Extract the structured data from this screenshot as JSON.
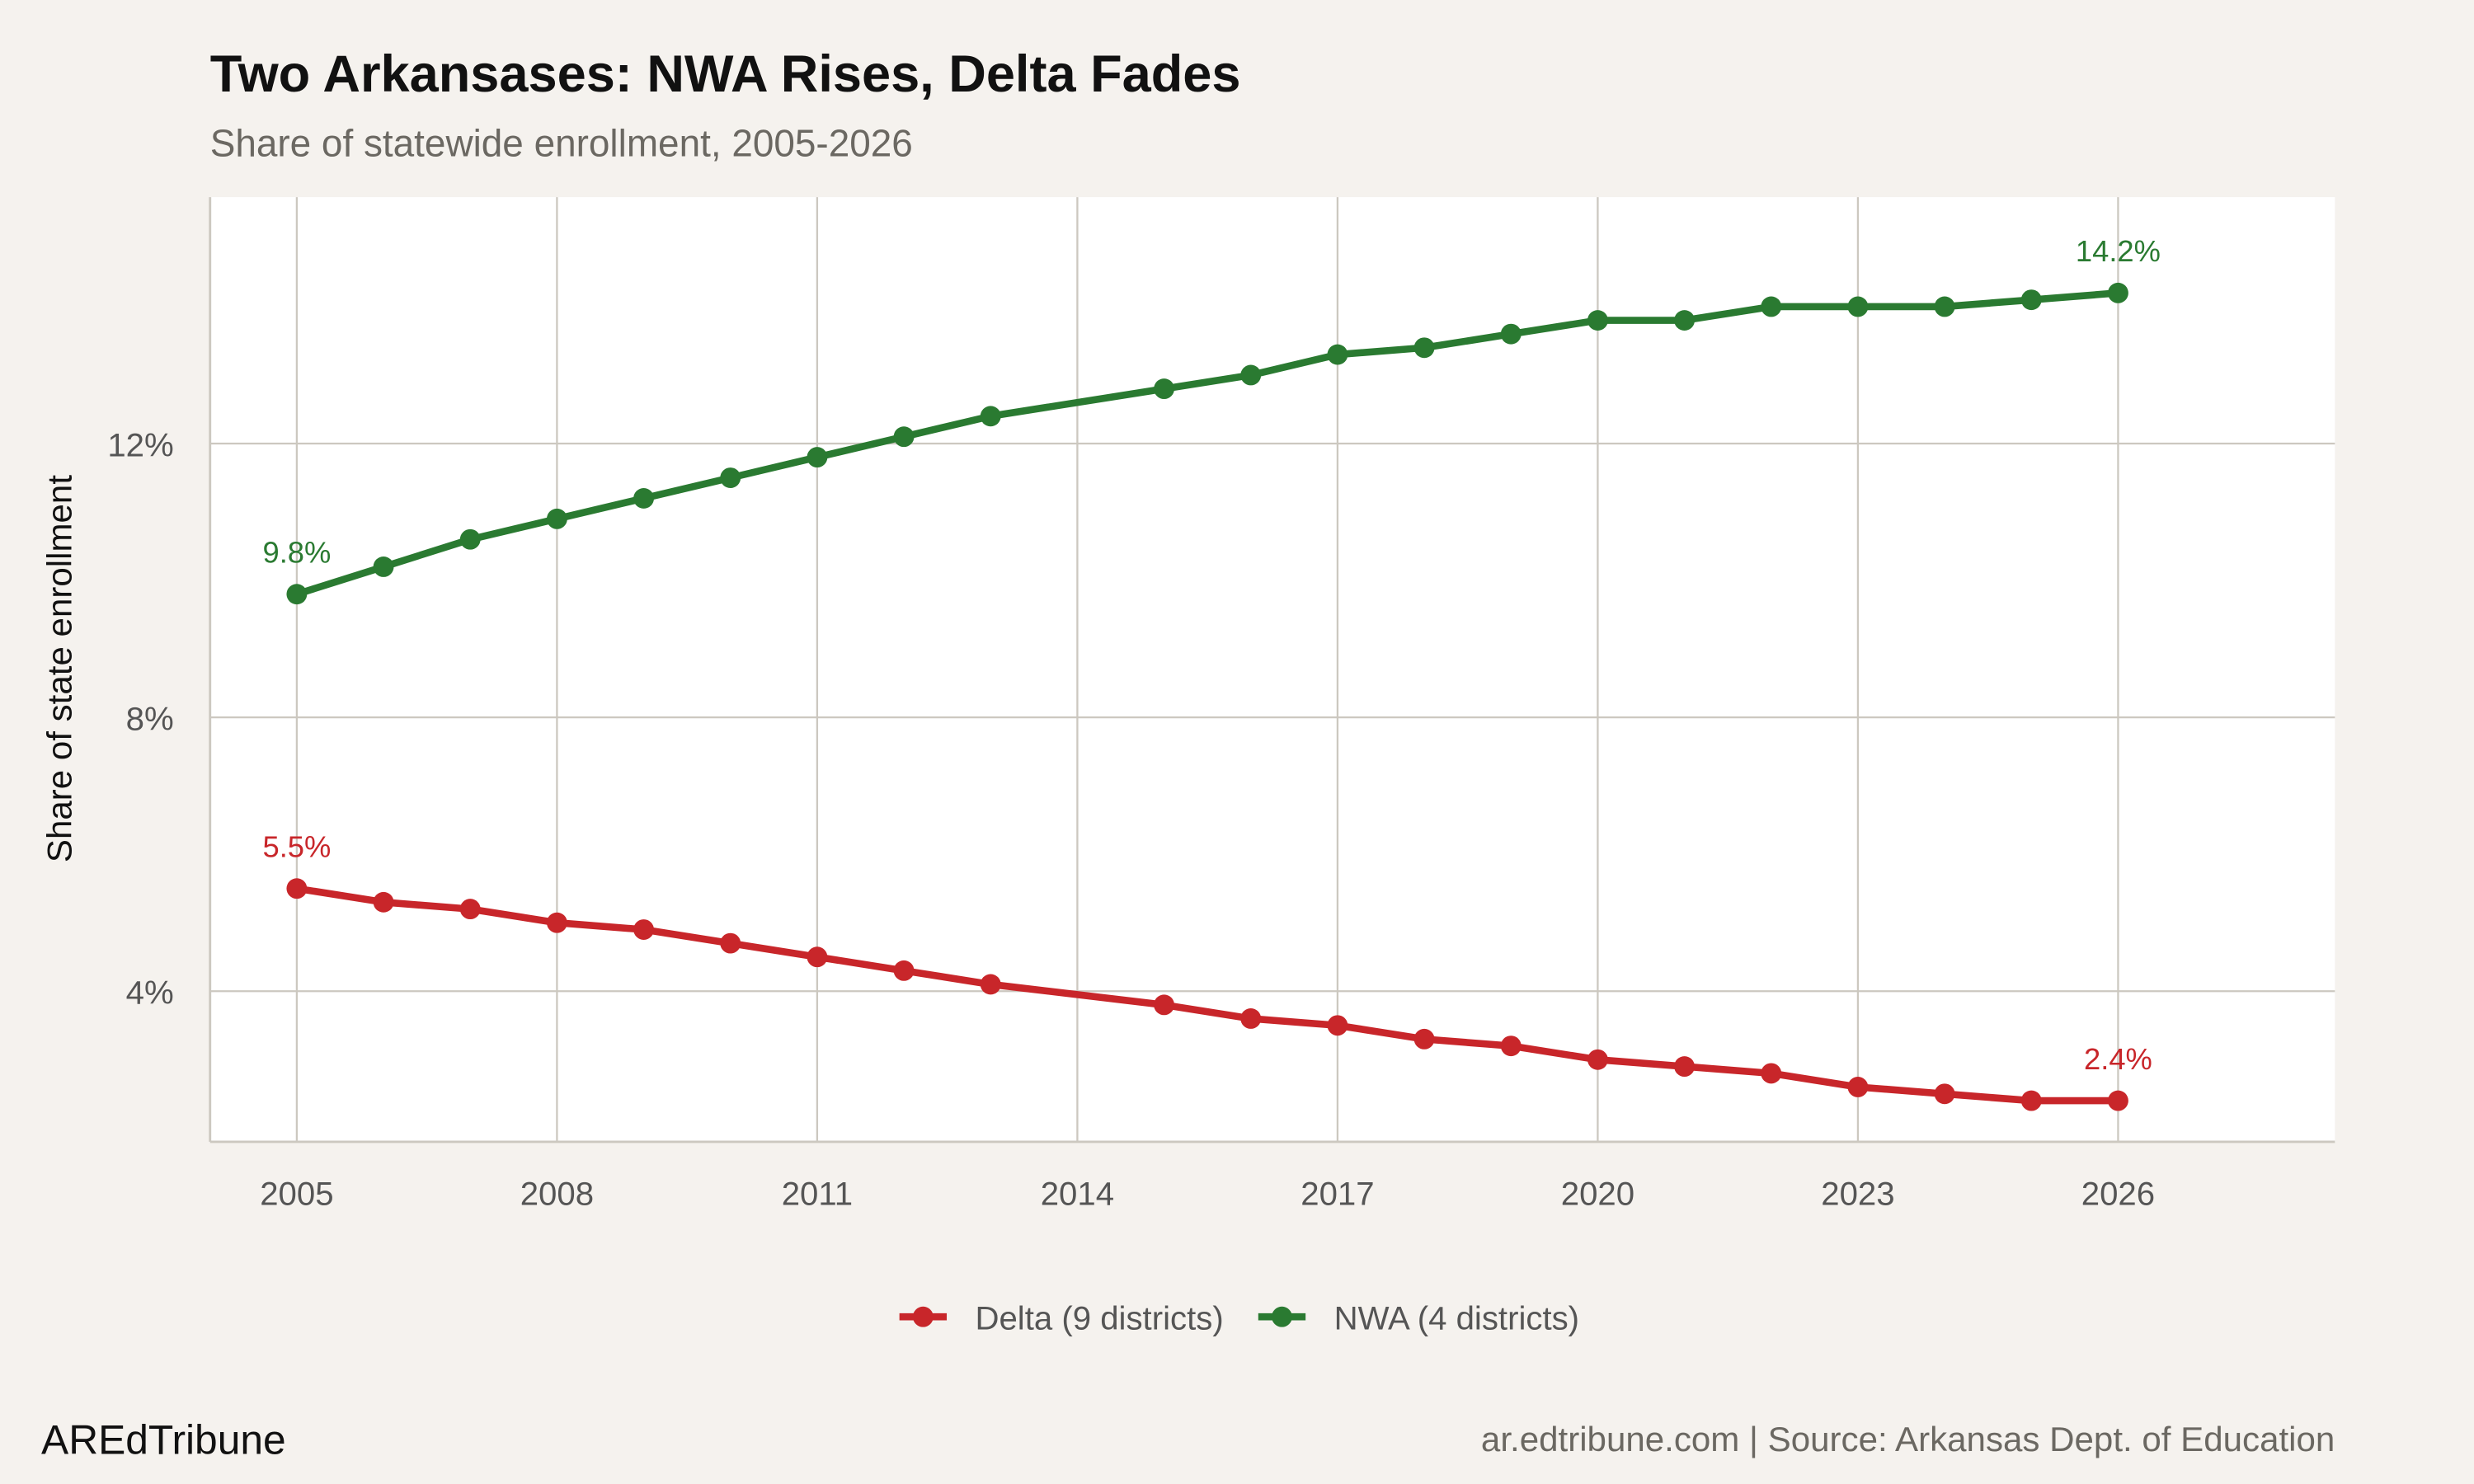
{
  "chart_data": {
    "type": "line",
    "title": "Two Arkansases: NWA Rises, Delta Fades",
    "subtitle": "Share of statewide enrollment, 2005-2026",
    "xlabel": "",
    "ylabel": "Share of state enrollment",
    "xlim": [
      2004,
      2028.5
    ],
    "ylim": [
      1.8,
      15.6
    ],
    "x_ticks": [
      2005,
      2008,
      2011,
      2014,
      2017,
      2020,
      2023,
      2026
    ],
    "y_ticks": [
      4,
      8,
      12
    ],
    "y_tick_labels": [
      "4%",
      "8%",
      "12%"
    ],
    "grid": true,
    "legend_position": "bottom",
    "series": [
      {
        "name": "Delta (9 districts)",
        "color": "#c8262a",
        "x": [
          2005,
          2006,
          2007,
          2008,
          2009,
          2010,
          2011,
          2012,
          2013,
          2015,
          2016,
          2017,
          2018,
          2019,
          2020,
          2021,
          2022,
          2023,
          2024,
          2025,
          2026
        ],
        "values": [
          5.5,
          5.3,
          5.2,
          5.0,
          4.9,
          4.7,
          4.5,
          4.3,
          4.1,
          3.8,
          3.6,
          3.5,
          3.3,
          3.2,
          3.0,
          2.9,
          2.8,
          2.6,
          2.5,
          2.4,
          2.4
        ],
        "labels": {
          "start": "5.5%",
          "end": "2.4%"
        }
      },
      {
        "name": "NWA (4 districts)",
        "color": "#2a7a31",
        "x": [
          2005,
          2006,
          2007,
          2008,
          2009,
          2010,
          2011,
          2012,
          2013,
          2015,
          2016,
          2017,
          2018,
          2019,
          2020,
          2021,
          2022,
          2023,
          2024,
          2025,
          2026
        ],
        "values": [
          9.8,
          10.2,
          10.6,
          10.9,
          11.2,
          11.5,
          11.8,
          12.1,
          12.4,
          12.8,
          13.0,
          13.3,
          13.4,
          13.6,
          13.8,
          13.8,
          14.0,
          14.0,
          14.0,
          14.1,
          14.2
        ],
        "labels": {
          "start": "9.8%",
          "end": "14.2%"
        }
      }
    ]
  },
  "footer": {
    "brand": "AREdTribune",
    "source": "ar.edtribune.com | Source: Arkansas Dept. of Education"
  },
  "colors": {
    "background": "#f5f2ee",
    "panel": "#ffffff",
    "grid": "#ccc8c0"
  }
}
